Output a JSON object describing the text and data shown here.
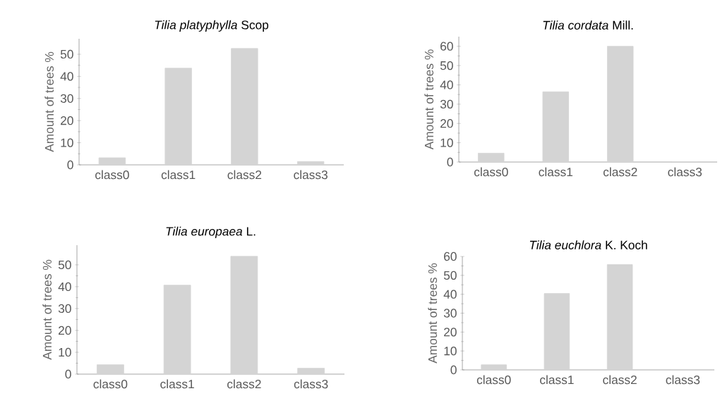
{
  "chart_data": [
    {
      "type": "bar",
      "title": "*Tilia platyphylla* Scop",
      "ylabel": "Amount of trees %",
      "categories": [
        "class0",
        "class1",
        "class2",
        "class3"
      ],
      "values": [
        3.2,
        43.7,
        52.6,
        1.5
      ],
      "color": "#d4d4d4",
      "ylim": [
        0,
        57
      ],
      "yticks": [
        0,
        10,
        20,
        30,
        40,
        50
      ]
    },
    {
      "type": "bar",
      "title": "*Tilia cordata* Mill.",
      "ylabel": "Amount of trees %",
      "categories": [
        "class0",
        "class1",
        "class2",
        "class3"
      ],
      "values": [
        4.6,
        36.4,
        60,
        0
      ],
      "color": "#d4d4d4",
      "ylim": [
        0,
        65
      ],
      "yticks": [
        0,
        10,
        20,
        30,
        40,
        50,
        60
      ]
    },
    {
      "type": "bar",
      "title": "*Tilia europaea* L.",
      "ylabel": "Amount of trees %",
      "categories": [
        "class0",
        "class1",
        "class2",
        "class3"
      ],
      "values": [
        4.3,
        40.7,
        53.9,
        2.7
      ],
      "color": "#d4d4d4",
      "ylim": [
        0,
        59
      ],
      "yticks": [
        0,
        10,
        20,
        30,
        40,
        50
      ]
    },
    {
      "type": "bar",
      "title": "*Tilia euchlora* K. Koch",
      "ylabel": "Amount of trees %",
      "categories": [
        "class0",
        "class1",
        "class2",
        "class3"
      ],
      "values": [
        2.7,
        40.4,
        55.7,
        0
      ],
      "color": "#d4d4d4",
      "ylim": [
        0,
        60
      ],
      "yticks": [
        0,
        10,
        20,
        30,
        40,
        50,
        60
      ]
    }
  ]
}
